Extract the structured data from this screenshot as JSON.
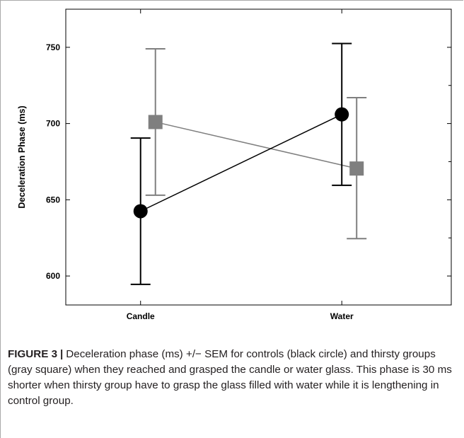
{
  "caption": {
    "label": "FIGURE 3",
    "separator": "|",
    "text": "Deceleration phase (ms) +/− SEM for controls (black circle) and thirsty groups (gray square) when they reached and grasped the candle or water glass. This phase is 30 ms shorter when thirsty group have to grasp the glass filled with water while it is lengthening in control group."
  },
  "chart_data": {
    "type": "line",
    "title": "",
    "xlabel": "",
    "ylabel": "Deceleration Phase (ms)",
    "categories": [
      "Candle",
      "Water"
    ],
    "yticks": [
      600,
      650,
      700,
      750
    ],
    "ylim": [
      581,
      775
    ],
    "grid": false,
    "series": [
      {
        "color": "#000000",
        "marker": "circle",
        "values": [
          642.5,
          706
        ],
        "err_low": [
          594.5,
          659.5
        ],
        "err_high": [
          690.5,
          752.5
        ]
      },
      {
        "color": "#7f7f7f",
        "marker": "square",
        "values": [
          701,
          670.5
        ],
        "err_low": [
          653,
          624.5
        ],
        "err_high": [
          749,
          717
        ]
      }
    ]
  }
}
